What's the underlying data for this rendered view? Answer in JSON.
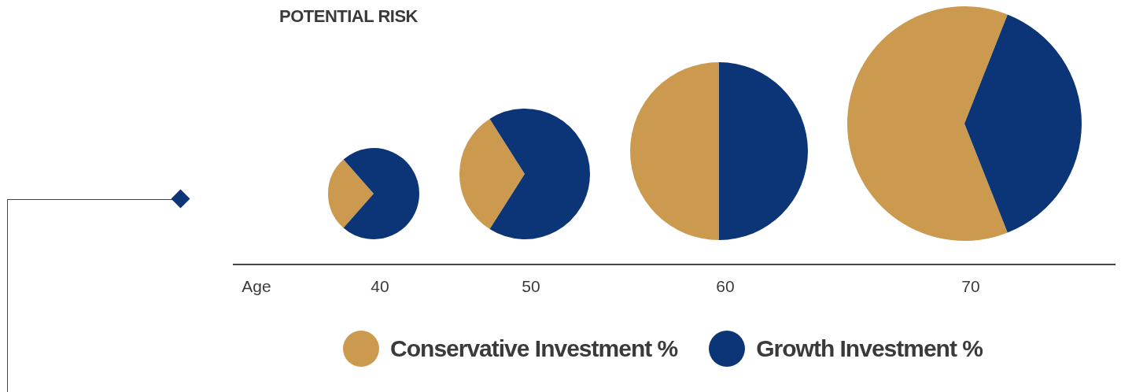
{
  "chart_data": [
    {
      "type": "pie",
      "title": "POTENTIAL RISK",
      "annotations": [
        "Age"
      ],
      "xlabel": "40",
      "legend": "bottom",
      "categories": [
        "Conservative Investment %",
        "Growth Investment %"
      ],
      "values": [
        27,
        73
      ],
      "colors": [
        "#cc9a4e",
        "#0b3576"
      ]
    },
    {
      "type": "pie",
      "xlabel": "50",
      "categories": [
        null,
        null
      ],
      "values": [
        32,
        68
      ],
      "colors": [
        "#cc9a4e",
        "#0b3576"
      ]
    },
    {
      "type": "pie",
      "xlabel": "60",
      "categories": [
        null,
        null
      ],
      "values": [
        50,
        50
      ],
      "colors": [
        "#cc9a4e",
        "#0b3576"
      ]
    },
    {
      "type": "pie",
      "xlabel": "70",
      "categories": [
        null,
        null
      ],
      "values": [
        62,
        38
      ],
      "colors": [
        "#cc9a4e",
        "#0b3576"
      ]
    }
  ]
}
